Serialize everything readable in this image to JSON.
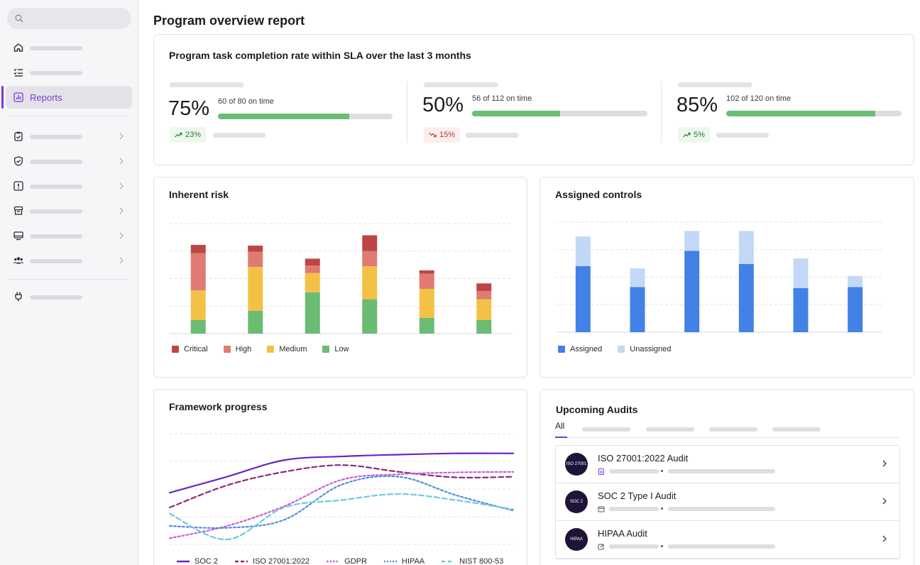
{
  "page": {
    "title": "Program overview report"
  },
  "sidebar": {
    "active_label": "Reports"
  },
  "sla": {
    "title": "Program task completion rate within SLA over the last 3 months",
    "kpis": [
      {
        "percent_label": "75%",
        "detail": "60 of 80 on time",
        "progress": 0.75,
        "delta": "23%",
        "trend": "up"
      },
      {
        "percent_label": "50%",
        "detail": "56 of 112 on time",
        "progress": 0.5,
        "delta": "15%",
        "trend": "down"
      },
      {
        "percent_label": "85%",
        "detail": "102 of 120 on time",
        "progress": 0.85,
        "delta": "5%",
        "trend": "up"
      }
    ]
  },
  "chart_data": [
    {
      "type": "bar",
      "title": "Inherent risk",
      "stacked": true,
      "categories": [
        "",
        "",
        "",
        "",
        "",
        ""
      ],
      "series": [
        {
          "name": "Low",
          "color": "#6bbb73",
          "values": [
            2,
            3.3,
            6,
            5,
            2.3,
            2
          ]
        },
        {
          "name": "Medium",
          "color": "#f4c147",
          "values": [
            4.3,
            6.4,
            2.8,
            4.8,
            4.2,
            3
          ]
        },
        {
          "name": "High",
          "color": "#e07a73",
          "values": [
            5.4,
            2.2,
            1.1,
            2.2,
            2.2,
            1.2
          ]
        },
        {
          "name": "Critical",
          "color": "#be4545",
          "values": [
            1.2,
            0.9,
            1,
            2.3,
            0.5,
            1.1
          ]
        }
      ],
      "ylim": [
        0,
        16
      ],
      "grid": true,
      "legend": "bottom-left"
    },
    {
      "type": "bar",
      "title": "Assigned controls",
      "stacked": true,
      "categories": [
        "",
        "",
        "",
        "",
        "",
        ""
      ],
      "series": [
        {
          "name": "Assigned",
          "color": "#4281e6",
          "values": [
            6,
            4.1,
            7.4,
            6.2,
            4,
            4.1
          ]
        },
        {
          "name": "Unassigned",
          "color": "#c3d8f7",
          "values": [
            2.7,
            1.7,
            1.8,
            3,
            2.7,
            1
          ]
        }
      ],
      "ylim": [
        0,
        10
      ],
      "grid": true,
      "legend": "bottom-left"
    },
    {
      "type": "line",
      "title": "Framework progress",
      "x": [
        0,
        1,
        2,
        3,
        4,
        5,
        6
      ],
      "series": [
        {
          "name": "SOC 2",
          "color": "#6a24c6",
          "dash": "solid",
          "values": [
            84,
            110,
            137,
            143,
            146,
            148,
            148
          ]
        },
        {
          "name": "ISO 27001:2022",
          "color": "#8a2c7c",
          "dash": "dashed",
          "values": [
            60,
            96,
            118,
            129,
            118,
            109,
            110
          ]
        },
        {
          "name": "GDPR",
          "color": "#cf5bd6",
          "dash": "dotted",
          "values": [
            10,
            30,
            62,
            105,
            114,
            117,
            118
          ]
        },
        {
          "name": "HIPAA",
          "color": "#4f8fdc",
          "dash": "dotted",
          "values": [
            30,
            27,
            40,
            97,
            110,
            80,
            55
          ]
        },
        {
          "name": "NIST 800-53",
          "color": "#6fc9e0",
          "dash": "dashed",
          "values": [
            50,
            8,
            60,
            72,
            82,
            72,
            57
          ]
        }
      ],
      "ylim": [
        0,
        180
      ],
      "grid": true,
      "legend": "bottom-left"
    }
  ],
  "framework_legend": [
    "SOC 2",
    "ISO 27001:2022",
    "GDPR",
    "HIPAA",
    "NIST 800-53"
  ],
  "risk_legend": [
    "Critical",
    "High",
    "Medium",
    "Low"
  ],
  "controls_legend": [
    "Assigned",
    "Unassigned"
  ],
  "audits": {
    "title": "Upcoming Audits",
    "tab_all": "All",
    "items": [
      {
        "name": "ISO 27001:2022 Audit",
        "badge": "ISO 27001"
      },
      {
        "name": "SOC 2 Type I Audit",
        "badge": "SOC 2"
      },
      {
        "name": "HIPAA Audit",
        "badge": "HIPAA"
      }
    ]
  },
  "colors": {
    "accent": "#7a3ad6",
    "success": "#6bbd74"
  }
}
